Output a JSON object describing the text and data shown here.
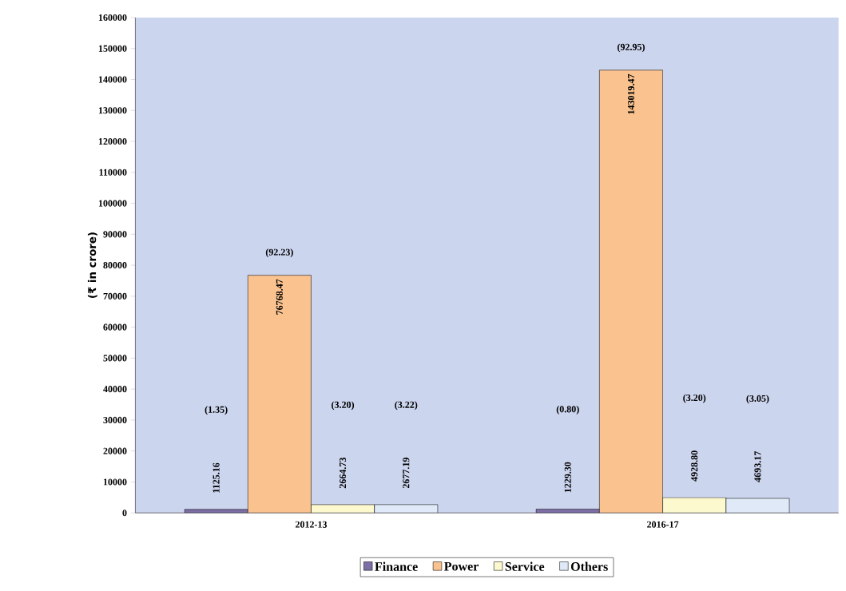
{
  "chart_data": {
    "type": "bar",
    "ylabel": "(₹ in crore)",
    "categories": [
      "2012-13",
      "2016-17"
    ],
    "series": [
      {
        "name": "Finance",
        "color": "#7d6fa6",
        "values": [
          1125.16,
          1229.3
        ]
      },
      {
        "name": "Power",
        "color": "#f9c28f",
        "values": [
          76768.47,
          143019.47
        ]
      },
      {
        "name": "Service",
        "color": "#fcf9cf",
        "values": [
          2664.73,
          4928.8
        ]
      },
      {
        "name": "Others",
        "color": "#dfe9f7",
        "values": [
          2677.19,
          4693.17
        ]
      }
    ],
    "value_labels": [
      [
        "1125.16",
        "1229.30"
      ],
      [
        "76768.47",
        "143019.47"
      ],
      [
        "2664.73",
        "4928.80"
      ],
      [
        "2677.19",
        "4693.17"
      ]
    ],
    "annotations": [
      "(1.35)",
      "(92.23)",
      "(3.20)",
      "(3.22)",
      "(0.80)",
      "(92.95)",
      "(3.20)",
      "(3.05)"
    ],
    "ylim": [
      0,
      160000
    ],
    "yticks": [
      0,
      10000,
      20000,
      30000,
      40000,
      50000,
      60000,
      70000,
      80000,
      90000,
      100000,
      110000,
      120000,
      130000,
      140000,
      150000,
      160000
    ],
    "grid": false,
    "legend": "bottom"
  }
}
